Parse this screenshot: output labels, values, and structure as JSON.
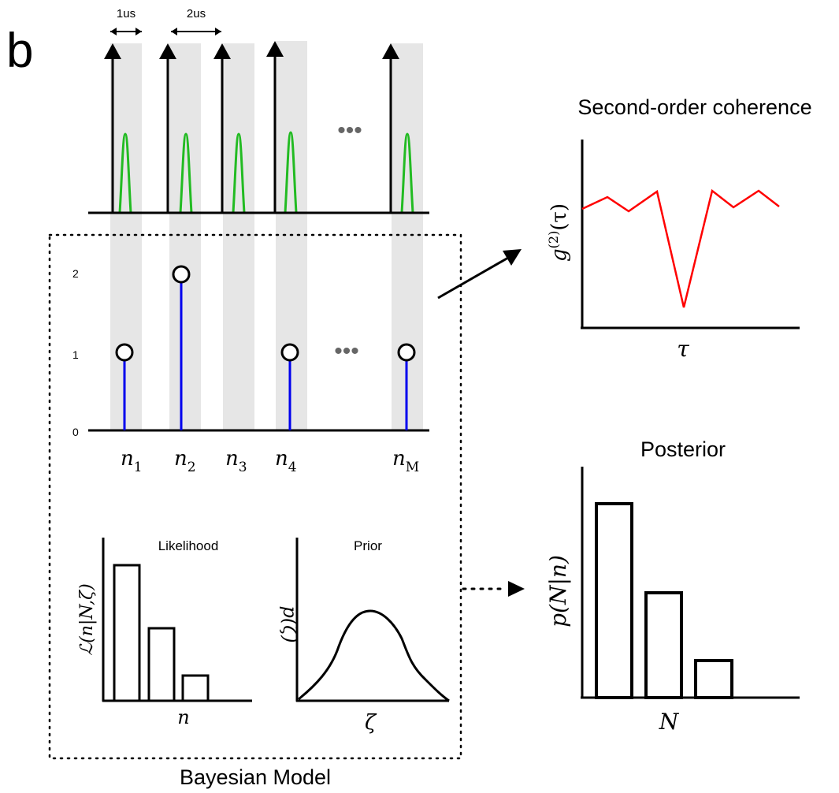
{
  "panel_label": "b",
  "timing": {
    "interval_1": "1us",
    "interval_2": "2us",
    "ellipsis": "•••"
  },
  "counts": {
    "y_ticks": [
      "0",
      "1",
      "2"
    ],
    "ylim": [
      0,
      2
    ],
    "stems": [
      {
        "label": "n",
        "sub": "1",
        "value": 1
      },
      {
        "label": "n",
        "sub": "2",
        "value": 2
      },
      {
        "label": "n",
        "sub": "3",
        "value": 0
      },
      {
        "label": "n",
        "sub": "4",
        "value": 1
      },
      {
        "label": "n",
        "sub": "M",
        "value": 1
      }
    ],
    "ellipsis": "•••"
  },
  "coherence": {
    "title": "Second-order coherence",
    "ylabel_main": "g",
    "ylabel_sup": "(2)",
    "ylabel_arg": "(τ)",
    "xlabel": "τ",
    "series_color": "#ff0000"
  },
  "likelihood": {
    "title": "Likelihood",
    "ylabel": "ℒ(n|N,ζ)",
    "xlabel": "n"
  },
  "prior": {
    "title": "Prior",
    "ylabel": "p(ζ)",
    "xlabel": "ζ"
  },
  "posterior": {
    "title": "Posterior",
    "ylabel": "p(N|n)",
    "xlabel": "N"
  },
  "model_label": "Bayesian Model",
  "colors": {
    "pulse": "#22bb22",
    "stem": "#0000ee",
    "window": "#e6e6e6",
    "coherence_line": "#ff0000"
  }
}
